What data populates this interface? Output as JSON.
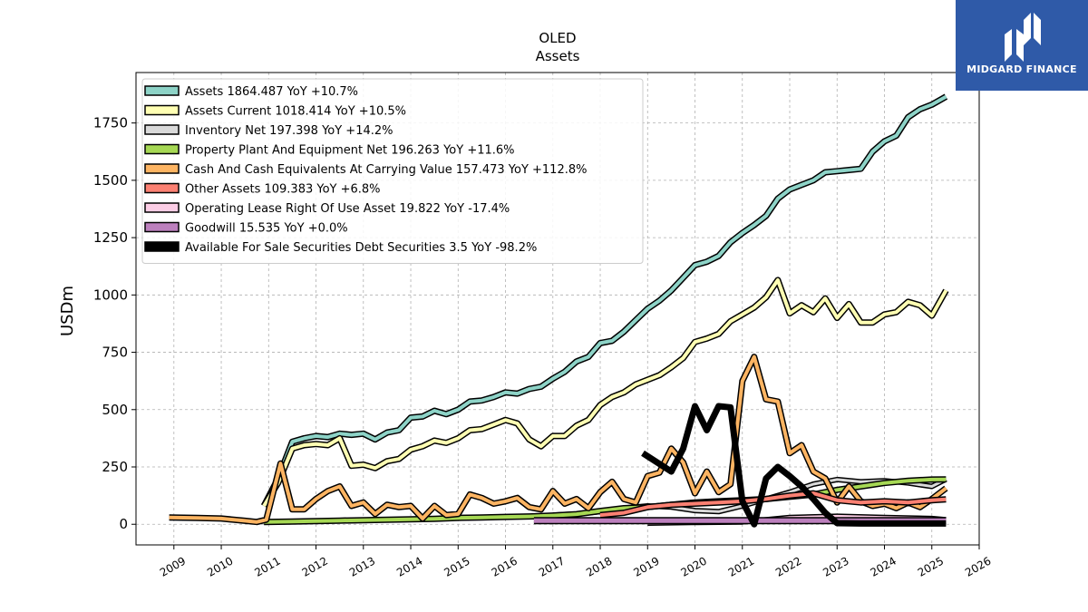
{
  "chart_data": {
    "type": "line",
    "title": "OLED",
    "subtitle": "Assets",
    "xlabel": "",
    "ylabel": "USDm",
    "xlim": [
      2008.2,
      2026.0
    ],
    "ylim": [
      -90,
      1970
    ],
    "x_ticks": [
      2009,
      2010,
      2011,
      2012,
      2013,
      2014,
      2015,
      2016,
      2017,
      2018,
      2019,
      2020,
      2021,
      2022,
      2023,
      2024,
      2025,
      2026
    ],
    "x_tick_labels": [
      "2009",
      "2010",
      "2011",
      "2012",
      "2013",
      "2014",
      "2015",
      "2016",
      "2017",
      "2018",
      "2019",
      "2020",
      "2021",
      "2022",
      "2023",
      "2024",
      "2025",
      "2026"
    ],
    "y_ticks": [
      0,
      250,
      500,
      750,
      1000,
      1250,
      1500,
      1750
    ],
    "y_tick_labels": [
      "0",
      "250",
      "500",
      "750",
      "1000",
      "1250",
      "1500",
      "1750"
    ],
    "grid": true,
    "legend_position": "top-left",
    "series": [
      {
        "name": "Assets  1864.487 YoY +10.7%",
        "color": "#8dd3c7",
        "width": 4,
        "x": [
          2010.9,
          2011.2,
          2011.5,
          2011.75,
          2012.0,
          2012.25,
          2012.5,
          2012.75,
          2013.0,
          2013.25,
          2013.5,
          2013.75,
          2014.0,
          2014.25,
          2014.5,
          2014.75,
          2015.0,
          2015.25,
          2015.5,
          2015.75,
          2016.0,
          2016.25,
          2016.5,
          2016.75,
          2017.0,
          2017.25,
          2017.5,
          2017.75,
          2018.0,
          2018.25,
          2018.5,
          2018.75,
          2019.0,
          2019.25,
          2019.5,
          2019.75,
          2020.0,
          2020.25,
          2020.5,
          2020.75,
          2021.0,
          2021.25,
          2021.5,
          2021.75,
          2022.0,
          2022.25,
          2022.5,
          2022.75,
          2023.0,
          2023.25,
          2023.5,
          2023.75,
          2024.0,
          2024.25,
          2024.5,
          2024.75,
          2025.0,
          2025.3
        ],
        "y": [
          80,
          200,
          360,
          375,
          385,
          380,
          395,
          390,
          395,
          370,
          400,
          410,
          465,
          470,
          495,
          480,
          500,
          535,
          540,
          555,
          575,
          570,
          590,
          600,
          635,
          665,
          710,
          730,
          790,
          800,
          840,
          890,
          940,
          975,
          1020,
          1075,
          1130,
          1145,
          1170,
          1230,
          1270,
          1305,
          1345,
          1420,
          1460,
          1480,
          1500,
          1535,
          1540,
          1545,
          1550,
          1625,
          1670,
          1695,
          1775,
          1810,
          1830,
          1865
        ]
      },
      {
        "name": "Assets Current  1018.414 YoY +10.5%",
        "color": "#ffffb3",
        "width": 4,
        "x": [
          2010.9,
          2011.2,
          2011.5,
          2011.75,
          2012.0,
          2012.25,
          2012.5,
          2012.75,
          2013.0,
          2013.25,
          2013.5,
          2013.75,
          2014.0,
          2014.25,
          2014.5,
          2014.75,
          2015.0,
          2015.25,
          2015.5,
          2015.75,
          2016.0,
          2016.25,
          2016.5,
          2016.75,
          2017.0,
          2017.25,
          2017.5,
          2017.75,
          2018.0,
          2018.25,
          2018.5,
          2018.75,
          2019.0,
          2019.25,
          2019.5,
          2019.75,
          2020.0,
          2020.25,
          2020.5,
          2020.75,
          2021.0,
          2021.25,
          2021.5,
          2021.75,
          2022.0,
          2022.25,
          2022.5,
          2022.75,
          2023.0,
          2023.25,
          2023.5,
          2023.75,
          2024.0,
          2024.25,
          2024.5,
          2024.75,
          2025.0,
          2025.3
        ],
        "y": [
          80,
          180,
          330,
          345,
          350,
          345,
          375,
          255,
          260,
          245,
          275,
          285,
          325,
          340,
          365,
          355,
          375,
          410,
          415,
          435,
          455,
          440,
          370,
          340,
          385,
          385,
          430,
          455,
          520,
          555,
          575,
          610,
          630,
          650,
          685,
          725,
          795,
          810,
          830,
          885,
          915,
          945,
          990,
          1065,
          920,
          955,
          925,
          985,
          900,
          960,
          880,
          880,
          915,
          925,
          970,
          955,
          910,
          1020
        ]
      },
      {
        "name": "Inventory Net  197.398 YoY +14.2%",
        "color": "#d9d9d9",
        "width": 3,
        "x": [
          2017.0,
          2017.5,
          2018.0,
          2018.5,
          2019.0,
          2019.5,
          2020.0,
          2020.5,
          2021.0,
          2021.5,
          2022.0,
          2022.5,
          2023.0,
          2023.5,
          2024.0,
          2024.5,
          2025.0,
          2025.3
        ],
        "y": [
          40,
          45,
          55,
          70,
          80,
          75,
          60,
          55,
          80,
          110,
          140,
          175,
          195,
          185,
          190,
          180,
          165,
          197
        ]
      },
      {
        "name": "Property Plant And Equipment Net  196.263 YoY +11.6%",
        "color": "#a6d854",
        "width": 4,
        "x": [
          2010.9,
          2011.5,
          2012.0,
          2012.5,
          2013.0,
          2013.5,
          2014.0,
          2014.5,
          2015.0,
          2015.5,
          2016.0,
          2016.5,
          2017.0,
          2017.5,
          2018.0,
          2018.5,
          2019.0,
          2019.5,
          2020.0,
          2020.5,
          2021.0,
          2021.5,
          2022.0,
          2022.5,
          2023.0,
          2023.5,
          2024.0,
          2024.5,
          2025.0,
          2025.3
        ],
        "y": [
          10,
          12,
          14,
          16,
          18,
          20,
          22,
          24,
          28,
          30,
          32,
          34,
          38,
          44,
          58,
          70,
          75,
          85,
          95,
          100,
          105,
          110,
          120,
          130,
          150,
          165,
          180,
          190,
          195,
          196
        ]
      },
      {
        "name": "Cash And Cash Equivalents At Carrying Value  157.473 YoY +112.8%",
        "color": "#fdb462",
        "width": 4,
        "x": [
          2008.9,
          2009.5,
          2010.0,
          2010.5,
          2010.75,
          2010.95,
          2011.25,
          2011.5,
          2011.75,
          2012.0,
          2012.25,
          2012.5,
          2012.75,
          2013.0,
          2013.25,
          2013.5,
          2013.75,
          2014.0,
          2014.25,
          2014.5,
          2014.75,
          2015.0,
          2015.25,
          2015.5,
          2015.75,
          2016.0,
          2016.25,
          2016.5,
          2016.75,
          2017.0,
          2017.25,
          2017.5,
          2017.75,
          2018.0,
          2018.25,
          2018.5,
          2018.75,
          2019.0,
          2019.25,
          2019.5,
          2019.75,
          2020.0,
          2020.25,
          2020.5,
          2020.75,
          2021.0,
          2021.25,
          2021.5,
          2021.75,
          2022.0,
          2022.25,
          2022.5,
          2022.75,
          2023.0,
          2023.25,
          2023.5,
          2023.75,
          2024.0,
          2024.25,
          2024.5,
          2024.75,
          2025.0,
          2025.3
        ],
        "y": [
          30,
          28,
          25,
          15,
          10,
          20,
          265,
          65,
          65,
          110,
          145,
          165,
          80,
          95,
          45,
          85,
          75,
          80,
          25,
          80,
          40,
          45,
          130,
          115,
          90,
          100,
          115,
          75,
          65,
          145,
          90,
          110,
          70,
          140,
          185,
          110,
          95,
          210,
          225,
          330,
          270,
          135,
          230,
          140,
          175,
          625,
          730,
          545,
          535,
          310,
          345,
          230,
          200,
          95,
          165,
          100,
          80,
          90,
          70,
          95,
          75,
          110,
          157
        ]
      },
      {
        "name": "Other Assets  109.383 YoY +6.8%",
        "color": "#fb8072",
        "width": 4,
        "x": [
          2018.0,
          2018.5,
          2019.0,
          2019.5,
          2020.0,
          2020.5,
          2021.0,
          2021.5,
          2022.0,
          2022.5,
          2023.0,
          2023.5,
          2024.0,
          2024.5,
          2025.0,
          2025.3
        ],
        "y": [
          40,
          50,
          75,
          85,
          90,
          95,
          100,
          110,
          125,
          135,
          105,
          95,
          100,
          95,
          105,
          109
        ]
      },
      {
        "name": "Operating Lease Right Of Use Asset  19.822 YoY -17.4%",
        "color": "#fccde5",
        "width": 3,
        "x": [
          2019.0,
          2020.0,
          2021.0,
          2022.0,
          2023.0,
          2024.0,
          2025.0,
          2025.3
        ],
        "y": [
          5,
          8,
          10,
          30,
          35,
          30,
          25,
          20
        ]
      },
      {
        "name": "Goodwill  15.535 YoY +0.0%",
        "color": "#bc80bd",
        "width": 5,
        "x": [
          2016.6,
          2025.3
        ],
        "y": [
          15.5,
          15.5
        ]
      },
      {
        "name": "Available For Sale Securities Debt Securities  3.5 YoY -98.2%",
        "color": "#000000",
        "width": 7,
        "x": [
          2018.9,
          2019.5,
          2019.75,
          2020.0,
          2020.25,
          2020.5,
          2020.75,
          2021.0,
          2021.25,
          2021.5,
          2021.75,
          2022.0,
          2022.25,
          2022.5,
          2022.75,
          2023.0,
          2023.5,
          2024.0,
          2024.5,
          2025.0,
          2025.3
        ],
        "y": [
          310,
          230,
          330,
          515,
          410,
          515,
          510,
          100,
          0,
          200,
          250,
          210,
          165,
          110,
          50,
          5,
          3.5,
          3.5,
          3.5,
          3.5,
          3.5
        ]
      }
    ]
  },
  "logo": {
    "text": "MIDGARD FINANCE",
    "bg_color": "#2f5aa8"
  }
}
